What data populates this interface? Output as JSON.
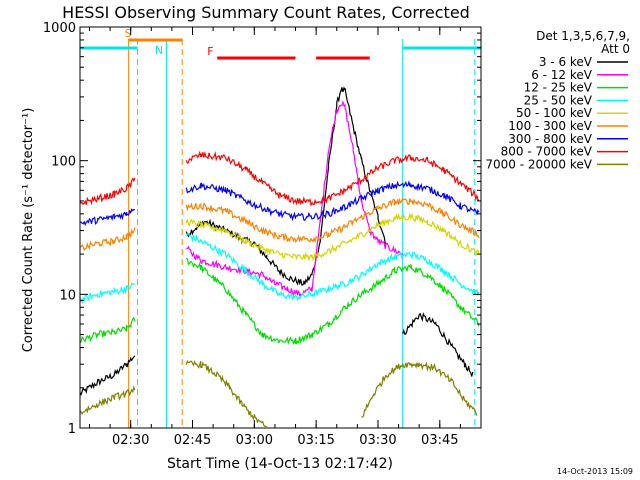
{
  "chart_data": {
    "type": "line",
    "title": "HESSI Observing Summary Count Rates, Corrected",
    "xlabel": "Start Time (14-Oct-13 02:17:42)",
    "ylabel": "Corrected Count Rate (s⁻¹ detector⁻¹)",
    "yscale": "log",
    "xlim": [
      "02:17:42",
      "03:55:00"
    ],
    "ylim": [
      1,
      1000
    ],
    "x_ticks": [
      "02:30",
      "02:45",
      "03:00",
      "03:15",
      "03:30",
      "03:45"
    ],
    "y_ticks": [
      "1",
      "10",
      "100",
      "1000"
    ],
    "grid": false,
    "legend": {
      "position": "right",
      "header": [
        "Det 1,3,5,6,7,9,",
        "Att 0"
      ]
    },
    "footer_stamp": "14-Oct-2013 15:09",
    "flags": [
      {
        "label": "S",
        "color": "#ff8000",
        "intervals": [
          [
            "02:29:30",
            "02:42:30"
          ]
        ]
      },
      {
        "label": "N",
        "color": "#00e5e5",
        "intervals": [
          [
            "02:17:42",
            "02:31:40"
          ],
          [
            "03:36:00",
            "03:55:00"
          ]
        ]
      },
      {
        "label": "F",
        "color": "#ff0000",
        "intervals": [
          [
            "02:51:00",
            "03:10:00"
          ],
          [
            "03:15:00",
            "03:28:00"
          ]
        ]
      }
    ],
    "vertical_markers": [
      {
        "time": "02:29:30",
        "color": "#ff8000",
        "style": "solid"
      },
      {
        "time": "02:31:40",
        "color": "#00e5e5",
        "style": "dashed"
      },
      {
        "time": "02:38:40",
        "color": "#00e5e5",
        "style": "solid"
      },
      {
        "time": "02:42:30",
        "color": "#ff8000",
        "style": "dashed"
      },
      {
        "time": "03:36:00",
        "color": "#00e5e5",
        "style": "solid"
      },
      {
        "time": "03:53:30",
        "color": "#00e5e5",
        "style": "dashed"
      }
    ],
    "series": [
      {
        "name": "3 - 6 keV",
        "color": "#000000",
        "points": [
          [
            "02:17:42",
            1.8
          ],
          [
            "02:22:00",
            2.2
          ],
          [
            "02:26:00",
            2.5
          ],
          [
            "02:29:00",
            3.0
          ],
          [
            "02:31:00",
            3.5
          ],
          null,
          [
            "02:43:30",
            28
          ],
          [
            "02:48:00",
            35
          ],
          [
            "02:53:00",
            30
          ],
          [
            "02:57:00",
            26
          ],
          [
            "03:00:00",
            24
          ],
          [
            "03:03:00",
            19
          ],
          [
            "03:06:00",
            15
          ],
          [
            "03:09:00",
            13
          ],
          [
            "03:12:00",
            12
          ],
          [
            "03:14:00",
            14
          ],
          [
            "03:16:00",
            25
          ],
          [
            "03:18:00",
            90
          ],
          [
            "03:20:00",
            260
          ],
          [
            "03:21:00",
            340
          ],
          [
            "03:22:00",
            330
          ],
          [
            "03:24:00",
            180
          ],
          [
            "03:26:00",
            100
          ],
          [
            "03:28:00",
            60
          ],
          [
            "03:30:00",
            38
          ],
          [
            "03:32:00",
            24
          ],
          null,
          [
            "03:36:00",
            5
          ],
          [
            "03:40:00",
            7
          ],
          [
            "03:44:00",
            6
          ],
          [
            "03:48:00",
            4
          ],
          [
            "03:51:00",
            3
          ],
          [
            "03:53:00",
            2.5
          ]
        ]
      },
      {
        "name": "6 - 12 keV",
        "color": "#ff00ff",
        "points": [
          [
            "02:43:30",
            22
          ],
          [
            "02:47:00",
            18
          ],
          [
            "02:53:00",
            16
          ],
          [
            "02:58:00",
            15
          ],
          [
            "03:02:00",
            14
          ],
          [
            "03:05:00",
            12
          ],
          [
            "03:08:00",
            11
          ],
          [
            "03:11:00",
            10
          ],
          [
            "03:14:00",
            11
          ],
          [
            "03:16:00",
            35
          ],
          [
            "03:18:00",
            120
          ],
          [
            "03:20:00",
            240
          ],
          [
            "03:21:00",
            270
          ],
          [
            "03:22:00",
            250
          ],
          [
            "03:24:00",
            120
          ],
          [
            "03:26:00",
            50
          ],
          [
            "03:28:00",
            30
          ],
          [
            "03:30:00",
            25
          ],
          [
            "03:33:00",
            22
          ],
          [
            "03:36:00",
            20
          ]
        ]
      },
      {
        "name": "12 - 25 keV",
        "color": "#00dd00",
        "points": [
          [
            "02:17:42",
            4.5
          ],
          [
            "02:22:00",
            5
          ],
          [
            "02:26:00",
            5.2
          ],
          [
            "02:29:00",
            5.5
          ],
          [
            "02:31:00",
            6.5
          ],
          null,
          [
            "02:43:30",
            18
          ],
          [
            "02:47:00",
            16
          ],
          [
            "02:53:00",
            11
          ],
          [
            "02:58:00",
            7
          ],
          [
            "03:02:00",
            5
          ],
          [
            "03:06:00",
            4.5
          ],
          [
            "03:10:00",
            4.5
          ],
          [
            "03:14:00",
            5
          ],
          [
            "03:18:00",
            6
          ],
          [
            "03:22:00",
            8
          ],
          [
            "03:26:00",
            10
          ],
          [
            "03:30:00",
            12
          ],
          [
            "03:34:00",
            15
          ],
          [
            "03:38:00",
            16
          ],
          [
            "03:42:00",
            14
          ],
          [
            "03:46:00",
            11
          ],
          [
            "03:50:00",
            8
          ],
          [
            "03:54:30",
            6
          ]
        ]
      },
      {
        "name": "25 - 50 keV",
        "color": "#00ffff",
        "points": [
          [
            "02:17:42",
            9
          ],
          [
            "02:22:00",
            10
          ],
          [
            "02:26:00",
            10.5
          ],
          [
            "02:29:00",
            11
          ],
          [
            "02:31:00",
            12
          ],
          null,
          [
            "02:43:30",
            28
          ],
          [
            "02:47:00",
            25
          ],
          [
            "02:53:00",
            20
          ],
          [
            "02:58:00",
            15
          ],
          [
            "03:02:00",
            12
          ],
          [
            "03:06:00",
            10
          ],
          [
            "03:10:00",
            9.5
          ],
          [
            "03:14:00",
            10
          ],
          [
            "03:18:00",
            11
          ],
          [
            "03:22:00",
            12
          ],
          [
            "03:26:00",
            14
          ],
          [
            "03:30:00",
            17
          ],
          [
            "03:34:00",
            19
          ],
          [
            "03:38:00",
            20
          ],
          [
            "03:42:00",
            18
          ],
          [
            "03:46:00",
            15
          ],
          [
            "03:50:00",
            12
          ],
          [
            "03:54:30",
            10
          ]
        ]
      },
      {
        "name": "50 - 100 keV",
        "color": "#d4d400",
        "points": [
          [
            "02:43:30",
            35
          ],
          [
            "02:47:00",
            33
          ],
          [
            "02:53:00",
            30
          ],
          [
            "02:58:00",
            25
          ],
          [
            "03:02:00",
            22
          ],
          [
            "03:06:00",
            20
          ],
          [
            "03:10:00",
            19
          ],
          [
            "03:14:00",
            19
          ],
          [
            "03:18:00",
            21
          ],
          [
            "03:22:00",
            24
          ],
          [
            "03:26:00",
            28
          ],
          [
            "03:30:00",
            33
          ],
          [
            "03:34:00",
            37
          ],
          [
            "03:38:00",
            38
          ],
          [
            "03:42:00",
            35
          ],
          [
            "03:46:00",
            30
          ],
          [
            "03:50:00",
            24
          ],
          [
            "03:54:30",
            20
          ]
        ]
      },
      {
        "name": "100 - 300 keV",
        "color": "#ff8000",
        "points": [
          [
            "02:17:42",
            22
          ],
          [
            "02:22:00",
            24
          ],
          [
            "02:26:00",
            25
          ],
          [
            "02:29:00",
            27
          ],
          [
            "02:31:00",
            30
          ],
          null,
          [
            "02:43:30",
            45
          ],
          [
            "02:47:00",
            46
          ],
          [
            "02:53:00",
            42
          ],
          [
            "02:58:00",
            35
          ],
          [
            "03:02:00",
            30
          ],
          [
            "03:06:00",
            27
          ],
          [
            "03:10:00",
            26
          ],
          [
            "03:14:00",
            26
          ],
          [
            "03:18:00",
            28
          ],
          [
            "03:22:00",
            32
          ],
          [
            "03:26:00",
            38
          ],
          [
            "03:30:00",
            44
          ],
          [
            "03:34:00",
            49
          ],
          [
            "03:38:00",
            50
          ],
          [
            "03:42:00",
            47
          ],
          [
            "03:46:00",
            40
          ],
          [
            "03:50:00",
            33
          ],
          [
            "03:54:30",
            28
          ]
        ]
      },
      {
        "name": "300 - 800 keV",
        "color": "#0000ff",
        "points": [
          [
            "02:17:42",
            34
          ],
          [
            "02:22:00",
            36
          ],
          [
            "02:26:00",
            38
          ],
          [
            "02:29:00",
            40
          ],
          [
            "02:31:00",
            45
          ],
          null,
          [
            "02:43:30",
            60
          ],
          [
            "02:47:00",
            65
          ],
          [
            "02:53:00",
            60
          ],
          [
            "02:58:00",
            50
          ],
          [
            "03:02:00",
            44
          ],
          [
            "03:06:00",
            40
          ],
          [
            "03:10:00",
            38
          ],
          [
            "03:14:00",
            38
          ],
          [
            "03:18:00",
            40
          ],
          [
            "03:22:00",
            45
          ],
          [
            "03:26:00",
            52
          ],
          [
            "03:30:00",
            60
          ],
          [
            "03:34:00",
            65
          ],
          [
            "03:38:00",
            66
          ],
          [
            "03:42:00",
            62
          ],
          [
            "03:46:00",
            55
          ],
          [
            "03:50:00",
            46
          ],
          [
            "03:54:30",
            40
          ]
        ]
      },
      {
        "name": "800 - 7000 keV",
        "color": "#ff0000",
        "points": [
          [
            "02:17:42",
            48
          ],
          [
            "02:22:00",
            52
          ],
          [
            "02:26:00",
            56
          ],
          [
            "02:29:00",
            62
          ],
          [
            "02:31:00",
            72
          ],
          null,
          [
            "02:43:30",
            100
          ],
          [
            "02:47:00",
            110
          ],
          [
            "02:53:00",
            105
          ],
          [
            "02:58:00",
            85
          ],
          [
            "03:02:00",
            68
          ],
          [
            "03:06:00",
            55
          ],
          [
            "03:10:00",
            50
          ],
          [
            "03:14:00",
            49
          ],
          [
            "03:18:00",
            52
          ],
          [
            "03:22:00",
            60
          ],
          [
            "03:26:00",
            72
          ],
          [
            "03:30:00",
            88
          ],
          [
            "03:34:00",
            100
          ],
          [
            "03:38:00",
            105
          ],
          [
            "03:42:00",
            100
          ],
          [
            "03:46:00",
            85
          ],
          [
            "03:50:00",
            68
          ],
          [
            "03:54:30",
            52
          ]
        ]
      },
      {
        "name": "7000 - 20000 keV",
        "color": "#808000",
        "points": [
          [
            "02:17:42",
            1.3
          ],
          [
            "02:22:00",
            1.5
          ],
          [
            "02:26:00",
            1.7
          ],
          [
            "02:29:00",
            1.8
          ],
          [
            "02:31:00",
            2.0
          ],
          null,
          [
            "02:43:30",
            3.0
          ],
          [
            "02:47:00",
            3.0
          ],
          [
            "02:51:00",
            2.5
          ],
          [
            "02:54:00",
            2.0
          ],
          [
            "02:57:00",
            1.5
          ],
          [
            "03:00:00",
            1.2
          ],
          [
            "03:03:00",
            1.0
          ],
          null,
          [
            "03:26:00",
            1.2
          ],
          [
            "03:29:00",
            1.8
          ],
          [
            "03:32:00",
            2.5
          ],
          [
            "03:36:00",
            3.0
          ],
          [
            "03:40:00",
            3.0
          ],
          [
            "03:44:00",
            2.8
          ],
          [
            "03:48:00",
            2.2
          ],
          [
            "03:51:00",
            1.6
          ],
          [
            "03:54:00",
            1.3
          ]
        ]
      }
    ]
  }
}
